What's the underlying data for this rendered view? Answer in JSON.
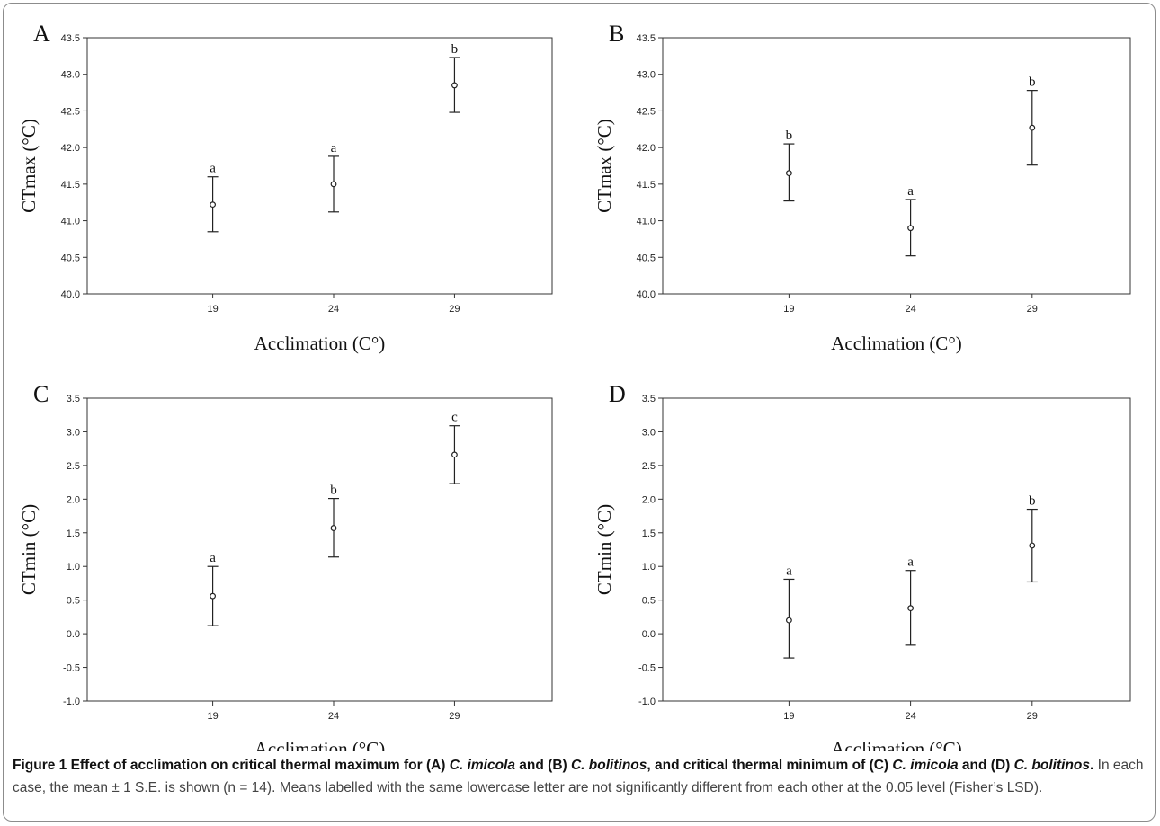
{
  "figure": {
    "caption": {
      "title_parts": [
        "Figure 1 Effect of acclimation on critical thermal maximum for (A) ",
        "C. imicola",
        " and (B) ",
        "C. bolitinos",
        ", and critical thermal minimum of (C) ",
        "C. imicola",
        " and (D) ",
        "C. bolitinos",
        "."
      ],
      "body": " In each case, the mean ± 1 S.E. is shown (n = 14). Means labelled with the same lowercase letter are not significantly different from each other at the 0.05 level (Fisher’s LSD)."
    }
  },
  "chart_data": [
    {
      "panel": "A",
      "type": "scatter",
      "ylabel": "CTmax (°C)",
      "xlabel": "Acclimation (C°)",
      "categories": [
        "19",
        "24",
        "29"
      ],
      "ylim": [
        40.0,
        43.5
      ],
      "yticks": [
        "40.0",
        "40.5",
        "41.0",
        "41.5",
        "42.0",
        "42.5",
        "43.0",
        "43.5"
      ],
      "series": [
        {
          "mean": [
            41.22,
            41.5,
            42.85
          ],
          "lower": [
            40.85,
            41.12,
            42.48
          ],
          "upper": [
            41.6,
            41.88,
            43.23
          ],
          "letters": [
            "a",
            "a",
            "b"
          ]
        }
      ]
    },
    {
      "panel": "B",
      "type": "scatter",
      "ylabel": "CTmax (°C)",
      "xlabel": "Acclimation (C°)",
      "categories": [
        "19",
        "24",
        "29"
      ],
      "ylim": [
        40.0,
        43.5
      ],
      "yticks": [
        "40.0",
        "40.5",
        "41.0",
        "41.5",
        "42.0",
        "42.5",
        "43.0",
        "43.5"
      ],
      "series": [
        {
          "mean": [
            41.65,
            40.9,
            42.27
          ],
          "lower": [
            41.27,
            40.52,
            41.76
          ],
          "upper": [
            42.05,
            41.29,
            42.78
          ],
          "letters": [
            "b",
            "a",
            "b"
          ]
        }
      ]
    },
    {
      "panel": "C",
      "type": "scatter",
      "ylabel": "CTmin (°C)",
      "xlabel": "Acclimation (°C)",
      "categories": [
        "19",
        "24",
        "29"
      ],
      "ylim": [
        -1.0,
        3.5
      ],
      "yticks": [
        "-1.0",
        "-0.5",
        "0.0",
        "0.5",
        "1.0",
        "1.5",
        "2.0",
        "2.5",
        "3.0",
        "3.5"
      ],
      "series": [
        {
          "mean": [
            0.56,
            1.57,
            2.66
          ],
          "lower": [
            0.12,
            1.14,
            2.23
          ],
          "upper": [
            1.0,
            2.01,
            3.09
          ],
          "letters": [
            "a",
            "b",
            "c"
          ]
        }
      ]
    },
    {
      "panel": "D",
      "type": "scatter",
      "ylabel": "CTmin (°C)",
      "xlabel": "Acclimation (°C)",
      "categories": [
        "19",
        "24",
        "29"
      ],
      "ylim": [
        -1.0,
        3.5
      ],
      "yticks": [
        "-1.0",
        "-0.5",
        "0.0",
        "0.5",
        "1.0",
        "1.5",
        "2.0",
        "2.5",
        "3.0",
        "3.5"
      ],
      "series": [
        {
          "mean": [
            0.2,
            0.38,
            1.31
          ],
          "lower": [
            -0.36,
            -0.17,
            0.77
          ],
          "upper": [
            0.81,
            0.94,
            1.85
          ],
          "letters": [
            "a",
            "a",
            "b"
          ]
        }
      ]
    }
  ]
}
